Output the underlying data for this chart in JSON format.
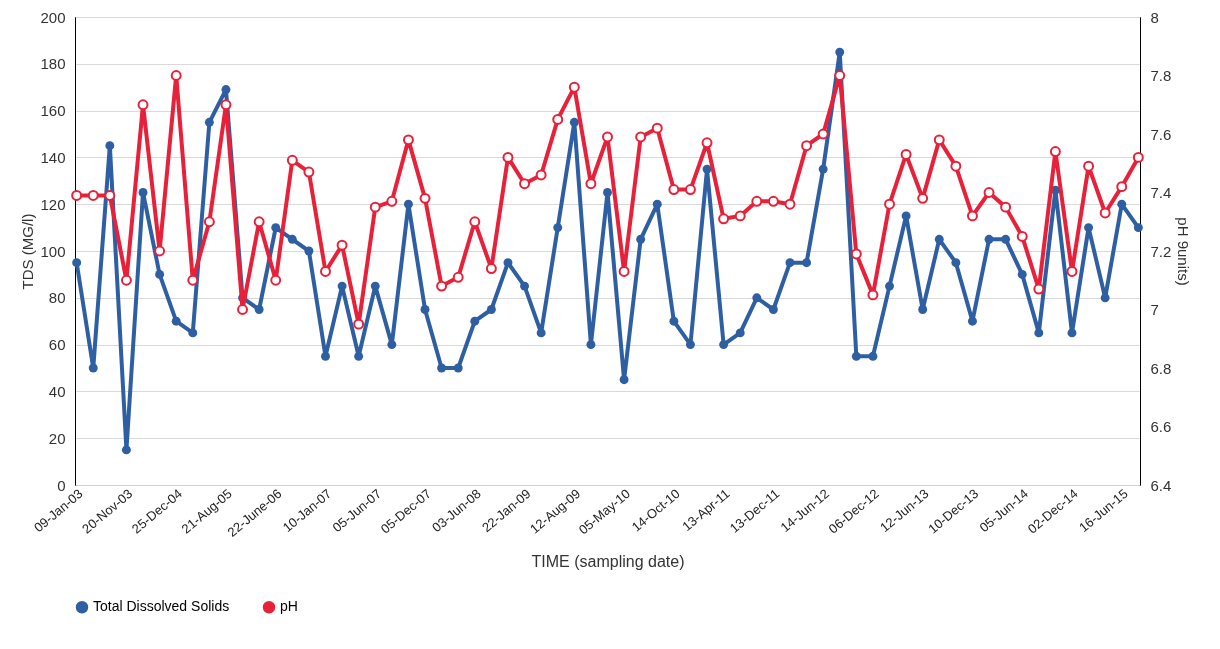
{
  "chart_data": {
    "type": "line",
    "xlabel": "TIME (sampling date)",
    "ylabel": "TDS (MG/l)",
    "y2label": "pH 9units)",
    "categories": [
      "09-Jan-03",
      null,
      null,
      "20-Nov-03",
      null,
      null,
      "25-Dec-04",
      null,
      null,
      "21-Aug-05",
      null,
      null,
      "22-June-06",
      null,
      null,
      "10-Jan-07",
      null,
      null,
      "05-Jun-07",
      null,
      null,
      "05-Dec-07",
      null,
      null,
      "03-Jun-08",
      null,
      null,
      "22-Jan-09",
      null,
      null,
      "12-Aug-09",
      null,
      null,
      "05-May-10",
      null,
      null,
      "14-Oct-10",
      null,
      null,
      "13-Apr-11",
      null,
      null,
      "13-Dec-11",
      null,
      null,
      "14-Jun-12",
      null,
      null,
      "06-Dec-12",
      null,
      null,
      "12-Jun-13",
      null,
      null,
      "10-Dec-13",
      null,
      null,
      "05-Jun-14",
      null,
      null,
      "02-Dec-14",
      null,
      null,
      "16-Jun-15",
      null
    ],
    "series": [
      {
        "name": "Total Dissolved Solids",
        "color": "#2e5fa3",
        "values": [
          95,
          50,
          145,
          15,
          125,
          90,
          70,
          65,
          155,
          169,
          80,
          75,
          110,
          105,
          100,
          55,
          85,
          55,
          85,
          60,
          120,
          75,
          50,
          50,
          70,
          75,
          95,
          85,
          65,
          110,
          155,
          60,
          125,
          45,
          105,
          120,
          70,
          60,
          135,
          60,
          65,
          80,
          75,
          95,
          95,
          135,
          185,
          55,
          55,
          85,
          115,
          75,
          105,
          95,
          70,
          105,
          105,
          90,
          65,
          126,
          65,
          110,
          80,
          120,
          110
        ]
      },
      {
        "name": "pH",
        "color": "#e8213a",
        "axis": "y2",
        "values": [
          7.39,
          7.39,
          7.39,
          7.1,
          7.7,
          7.2,
          7.8,
          7.1,
          7.3,
          7.7,
          7.0,
          7.3,
          7.1,
          7.51,
          7.47,
          7.13,
          7.22,
          6.95,
          7.35,
          7.37,
          7.58,
          7.38,
          7.08,
          7.11,
          7.3,
          7.14,
          7.52,
          7.43,
          7.46,
          7.65,
          7.76,
          7.43,
          7.59,
          7.13,
          7.59,
          7.62,
          7.41,
          7.41,
          7.57,
          7.31,
          7.32,
          7.37,
          7.37,
          7.36,
          7.56,
          7.6,
          7.8,
          7.19,
          7.05,
          7.36,
          7.53,
          7.38,
          7.58,
          7.49,
          7.32,
          7.4,
          7.35,
          7.25,
          7.07,
          7.54,
          7.13,
          7.49,
          7.33,
          7.42,
          7.52
        ]
      }
    ],
    "ylim": [
      0,
      200
    ],
    "yticks": [
      0,
      20,
      40,
      60,
      80,
      100,
      120,
      140,
      160,
      180,
      200
    ],
    "y2lim": [
      6.4,
      8
    ],
    "y2ticks": [
      6.4,
      6.6,
      6.8,
      7,
      7.2,
      7.4,
      7.6,
      7.8,
      8
    ],
    "grid": "y",
    "legend": "bottom",
    "marker": "circle",
    "line_style": "solid"
  }
}
